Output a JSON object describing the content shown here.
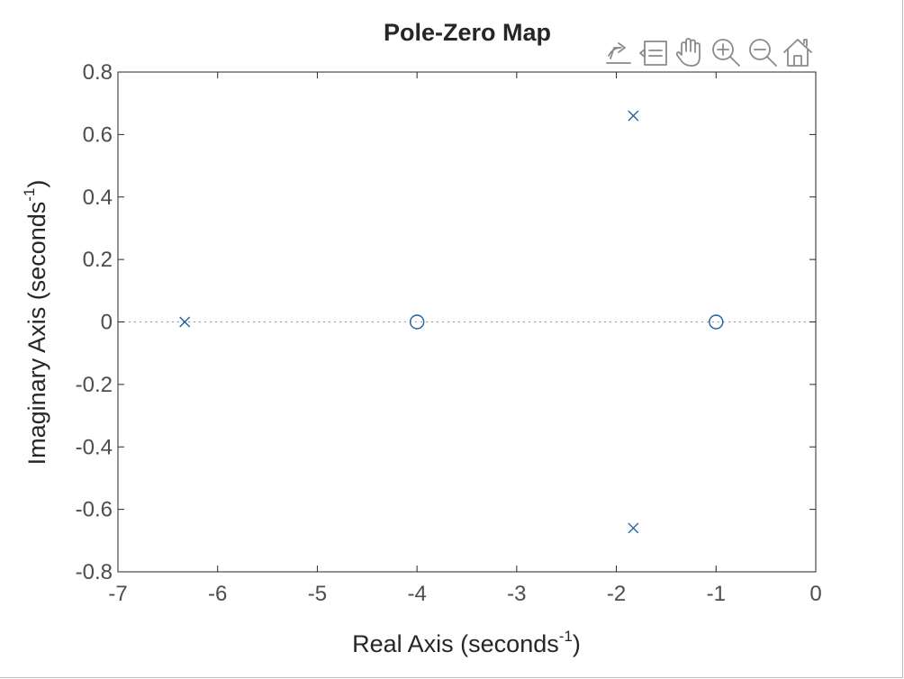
{
  "toolbar": {
    "icons": [
      {
        "name": "export-icon",
        "label": ""
      },
      {
        "name": "brush-icon",
        "label": ""
      },
      {
        "name": "pan-icon",
        "label": ""
      },
      {
        "name": "zoom-in-icon",
        "label": ""
      },
      {
        "name": "zoom-out-icon",
        "label": ""
      },
      {
        "name": "home-icon",
        "label": ""
      }
    ],
    "icon_color": "#8a8a8a"
  },
  "chart_data": {
    "type": "scatter",
    "title": "Pole-Zero Map",
    "xlabel_main": "Real  Axis  (seconds",
    "xlabel_sup": "-1",
    "xlabel_tail": ")",
    "ylabel_main": "Imaginary  Axis  (seconds",
    "ylabel_sup": "-1",
    "ylabel_tail": ")",
    "xlim": [
      -7,
      0
    ],
    "ylim": [
      -0.8,
      0.8
    ],
    "xticks": [
      -7,
      -6,
      -5,
      -4,
      -3,
      -2,
      -1,
      0
    ],
    "xtick_labels": [
      "-7",
      "-6",
      "-5",
      "-4",
      "-3",
      "-2",
      "-1",
      "0"
    ],
    "yticks": [
      0.8,
      0.6,
      0.4,
      0.2,
      0,
      -0.2,
      -0.4,
      -0.6,
      -0.8
    ],
    "ytick_labels": [
      "0.8",
      "0.6",
      "0.4",
      "0.2",
      "0",
      "-0.2",
      "-0.4",
      "-0.6",
      "-0.8"
    ],
    "grid": false,
    "zero_line": "dotted horizontal line at imaginary = 0",
    "series": [
      {
        "marker": "x",
        "points": [
          {
            "x": -6.33,
            "y": 0
          },
          {
            "x": -1.83,
            "y": 0.66
          },
          {
            "x": -1.83,
            "y": -0.66
          }
        ]
      },
      {
        "marker": "o",
        "points": [
          {
            "x": -4,
            "y": 0
          },
          {
            "x": -1,
            "y": 0
          }
        ]
      }
    ],
    "colors": {
      "marker": "#1f5fa0",
      "axes": "#262626",
      "ticks_text": "#4d4d4d",
      "zero_line": "#9a9a9a"
    }
  }
}
